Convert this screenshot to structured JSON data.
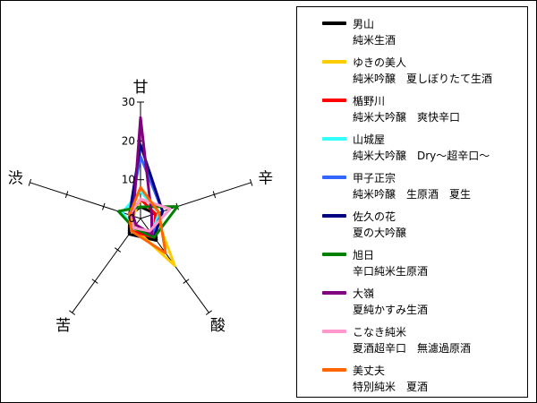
{
  "chart_data": {
    "type": "radar",
    "axes": [
      "甘",
      "辛",
      "酸",
      "苦",
      "渋"
    ],
    "radial_ticks": [
      "0",
      "10",
      "20",
      "30"
    ],
    "rmax": 30,
    "series": [
      {
        "name": "男山",
        "subtitle": "純米生酒",
        "color": "#000000",
        "values": [
          3,
          4,
          7,
          5,
          3
        ]
      },
      {
        "name": "ゆきの美人",
        "subtitle": "純米吟醸　夏しぼりたて生酒",
        "color": "#ffcc00",
        "values": [
          5,
          4,
          15,
          3,
          2
        ]
      },
      {
        "name": "楯野川",
        "subtitle": "純米大吟醸　爽快辛口",
        "color": "#ff0000",
        "values": [
          5,
          4,
          6,
          4,
          3
        ]
      },
      {
        "name": "山城屋",
        "subtitle": "純米大吟醸　Dry〜超辛口〜",
        "color": "#33ffff",
        "values": [
          7,
          5,
          5,
          3,
          5
        ]
      },
      {
        "name": "甲子正宗",
        "subtitle": "純米吟醸　生原酒　夏生",
        "color": "#3366ff",
        "values": [
          16,
          6,
          5,
          3,
          3
        ]
      },
      {
        "name": "佐久の花",
        "subtitle": "夏の大吟醸",
        "color": "#000080",
        "values": [
          19,
          6,
          6,
          3,
          3
        ]
      },
      {
        "name": "旭日",
        "subtitle": "辛口純米生原酒",
        "color": "#008000",
        "values": [
          3,
          10,
          6,
          3,
          6
        ]
      },
      {
        "name": "大嶺",
        "subtitle": "夏純かすみ生酒",
        "color": "#800080",
        "values": [
          26,
          3,
          5,
          2,
          2
        ]
      },
      {
        "name": "こなき純米",
        "subtitle": "夏酒超辛口　無濾過原酒",
        "color": "#ff99cc",
        "values": [
          5,
          8,
          4,
          3,
          3
        ]
      },
      {
        "name": "美丈夫",
        "subtitle": "特別純米　夏酒",
        "color": "#ff6600",
        "values": [
          8,
          5,
          11,
          4,
          3
        ]
      }
    ]
  }
}
